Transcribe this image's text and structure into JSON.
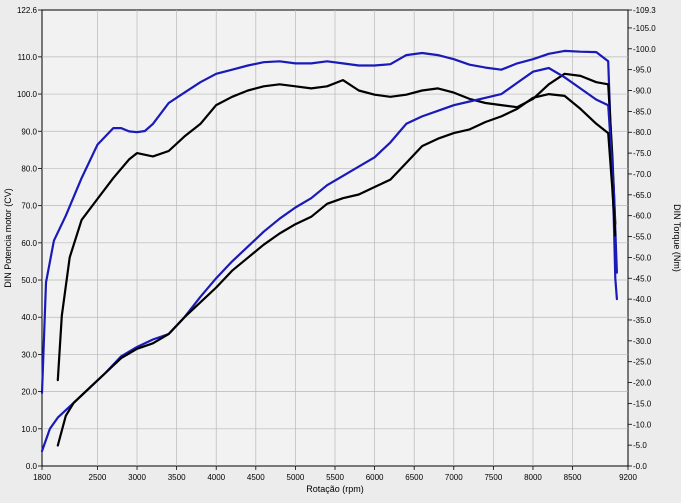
{
  "chart_data": {
    "type": "line",
    "xlabel": "Rotação (rpm)",
    "ylabel_left": "DIN Potencia motor (CV)",
    "ylabel_right": "DIN Torque (Nm)",
    "xlim": [
      1800,
      9200
    ],
    "ylim_left": [
      0,
      122.6
    ],
    "ylim_right": [
      0,
      109.3
    ],
    "x_ticks": [
      "1800",
      "2500",
      "3000",
      "3500",
      "4000",
      "4500",
      "5000",
      "5500",
      "6000",
      "6500",
      "7000",
      "7500",
      "8000",
      "8500",
      "9200"
    ],
    "x_tick_values": [
      1800,
      2500,
      3000,
      3500,
      4000,
      4500,
      5000,
      5500,
      6000,
      6500,
      7000,
      7500,
      8000,
      8500,
      9200
    ],
    "y_left_ticks": [
      "0.0",
      "10.0",
      "20.0",
      "30.0",
      "40.0",
      "50.0",
      "60.0",
      "70.0",
      "80.0",
      "90.0",
      "100.0",
      "110.0",
      "122.6"
    ],
    "y_left_tick_values": [
      0,
      10,
      20,
      30,
      40,
      50,
      60,
      70,
      80,
      90,
      100,
      110,
      122.6
    ],
    "y_right_ticks": [
      "0.0",
      "5.0",
      "10.0",
      "15.0",
      "20.0",
      "25.0",
      "30.0",
      "35.0",
      "40.0",
      "45.0",
      "50.0",
      "55.0",
      "60.0",
      "65.0",
      "70.0",
      "75.0",
      "80.0",
      "85.0",
      "90.0",
      "95.0",
      "100.0",
      "105.0",
      "109.3"
    ],
    "y_right_tick_values": [
      0,
      5,
      10,
      15,
      20,
      25,
      30,
      35,
      40,
      45,
      50,
      55,
      60,
      65,
      70,
      75,
      80,
      85,
      90,
      95,
      100,
      105,
      109.3
    ],
    "grid": true,
    "series": [
      {
        "role": "torque",
        "axis": "right",
        "color": "#1a1ab8",
        "x": [
          1800,
          1850,
          1950,
          2100,
          2300,
          2500,
          2700,
          2800,
          2900,
          3000,
          3100,
          3200,
          3400,
          3600,
          3800,
          4000,
          4200,
          4400,
          4600,
          4800,
          5000,
          5200,
          5400,
          5600,
          5800,
          6000,
          6200,
          6400,
          6600,
          6800,
          7000,
          7200,
          7400,
          7600,
          7800,
          8000,
          8200,
          8400,
          8600,
          8800,
          8950,
          9020,
          9040,
          9060
        ],
        "y": [
          17.5,
          44,
          54,
          60,
          69,
          77,
          81,
          81,
          80.2,
          80,
          80.3,
          82,
          87,
          89.5,
          92,
          94,
          95,
          96,
          96.8,
          97,
          96.5,
          96.5,
          97,
          96.5,
          96,
          96,
          96.3,
          98.5,
          99,
          98.5,
          97.5,
          96.2,
          95.5,
          95,
          96.5,
          97.5,
          98.8,
          99.5,
          99.3,
          99.2,
          97,
          60,
          45,
          40
        ]
      },
      {
        "role": "torque",
        "axis": "right",
        "color": "#000000",
        "x": [
          2000,
          2050,
          2150,
          2300,
          2500,
          2700,
          2900,
          3000,
          3200,
          3400,
          3600,
          3800,
          4000,
          4200,
          4400,
          4600,
          4800,
          5000,
          5200,
          5400,
          5600,
          5800,
          6000,
          6200,
          6400,
          6600,
          6800,
          7000,
          7200,
          7400,
          7600,
          7800,
          8000,
          8200,
          8400,
          8600,
          8800,
          8950,
          9000,
          9040
        ],
        "y": [
          20.6,
          36,
          50,
          59,
          64,
          69,
          73.5,
          75,
          74.2,
          75.5,
          79,
          82,
          86.5,
          88.5,
          90,
          91,
          91.5,
          91,
          90.5,
          91,
          92.5,
          90,
          89,
          88.5,
          89,
          90,
          90.5,
          89.5,
          88,
          87,
          86.5,
          86,
          88,
          91.5,
          94,
          93.5,
          92,
          91.5,
          75,
          58
        ]
      },
      {
        "role": "power",
        "axis": "left",
        "color": "#1a1ab8",
        "x": [
          1800,
          1900,
          2000,
          2200,
          2400,
          2600,
          2800,
          3000,
          3200,
          3400,
          3600,
          3800,
          4000,
          4200,
          4400,
          4600,
          4800,
          5000,
          5200,
          5400,
          5600,
          5800,
          6000,
          6200,
          6400,
          6600,
          6800,
          7000,
          7200,
          7400,
          7600,
          7800,
          8000,
          8200,
          8400,
          8600,
          8800,
          8950,
          9020,
          9060
        ],
        "y": [
          4,
          10,
          13,
          17,
          21,
          25,
          29.5,
          32,
          34,
          35.5,
          40,
          45.5,
          50.5,
          55,
          59,
          63,
          66.5,
          69.5,
          72,
          75.5,
          78,
          80.5,
          83,
          87,
          92,
          94,
          95.5,
          97,
          98,
          99,
          100,
          103,
          106,
          107,
          104.5,
          101.5,
          98.5,
          97,
          75,
          52
        ]
      },
      {
        "role": "power",
        "axis": "left",
        "color": "#000000",
        "x": [
          2000,
          2100,
          2200,
          2400,
          2600,
          2800,
          3000,
          3200,
          3400,
          3600,
          3800,
          4000,
          4200,
          4400,
          4600,
          4800,
          5000,
          5200,
          5400,
          5600,
          5800,
          6000,
          6200,
          6400,
          6600,
          6800,
          7000,
          7200,
          7400,
          7600,
          7800,
          8000,
          8200,
          8400,
          8600,
          8800,
          8950,
          9000,
          9040
        ],
        "y": [
          5.5,
          13.5,
          17,
          21,
          25,
          29,
          31.5,
          33,
          35.5,
          40,
          44,
          48,
          52.5,
          56,
          59.5,
          62.5,
          65,
          67,
          70.5,
          72,
          73,
          75,
          77,
          81.5,
          86,
          88,
          89.5,
          90.5,
          92.5,
          94,
          96,
          99,
          100,
          99.5,
          96,
          92,
          89.5,
          75,
          62
        ]
      }
    ]
  }
}
